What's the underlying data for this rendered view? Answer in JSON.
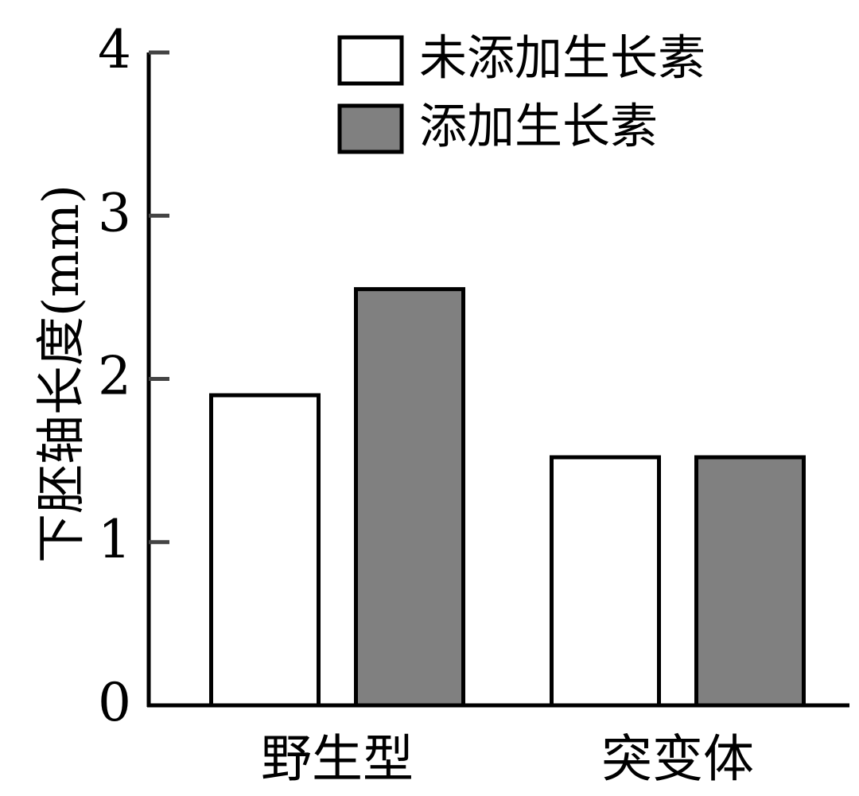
{
  "chart_data": {
    "type": "bar",
    "title": "",
    "xlabel": "",
    "ylabel": "下胚轴长度(mm)",
    "ylim": [
      0,
      4
    ],
    "yticks": [
      0,
      1,
      2,
      3,
      4
    ],
    "ytick_labels": [
      "0",
      "1",
      "2",
      "3",
      "4"
    ],
    "grid": false,
    "legend_position": "top-right",
    "categories": [
      "野生型",
      "突变体"
    ],
    "series": [
      {
        "name": "未添加生长素",
        "values": [
          1.9,
          1.52
        ],
        "color": "#ffffff"
      },
      {
        "name": "添加生长素",
        "values": [
          2.55,
          1.52
        ],
        "color": "#808080"
      }
    ],
    "bar_edge_color": "#000000"
  }
}
